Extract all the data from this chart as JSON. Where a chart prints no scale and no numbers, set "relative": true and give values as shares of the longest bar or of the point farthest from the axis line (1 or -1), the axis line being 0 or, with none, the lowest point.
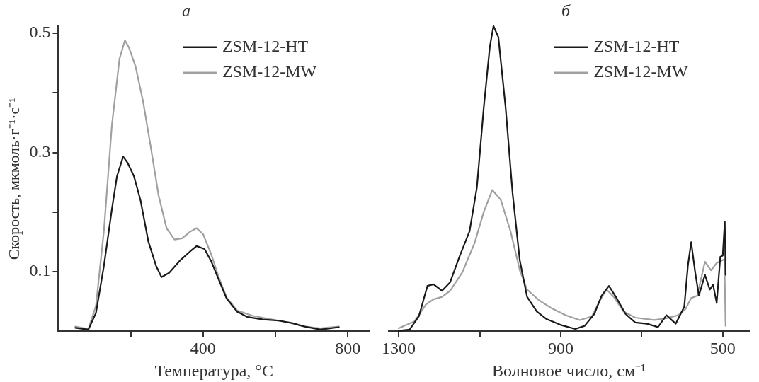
{
  "chart_data": [
    {
      "type": "line",
      "title": "а",
      "xlabel": "Температура, °C",
      "ylabel": "Скорость, мкмоль·г⁻¹·с⁻¹",
      "xlim": [
        0,
        860
      ],
      "ylim": [
        0,
        0.512
      ],
      "xticks": [
        {
          "value": 200,
          "label": null
        },
        400,
        {
          "value": 600,
          "label": null
        },
        800
      ],
      "yticks": [
        0.1,
        {
          "value": 0.2,
          "label": null
        },
        0.3,
        {
          "value": 0.4,
          "label": null
        },
        0.5
      ],
      "legend": "top right",
      "grid": false,
      "marker": "none",
      "line_style": "solid",
      "series": [
        {
          "name": "ZSM-12-HT",
          "color": "#1a1a1a",
          "x": [
            47,
            83,
            104,
            126,
            148,
            162,
            179,
            191,
            209,
            227,
            249,
            270,
            285,
            306,
            335,
            364,
            382,
            404,
            422,
            443,
            465,
            494,
            523,
            566,
            609,
            645,
            681,
            724,
            775
          ],
          "values": [
            0.006,
            0.003,
            0.031,
            0.11,
            0.205,
            0.26,
            0.293,
            0.283,
            0.26,
            0.22,
            0.15,
            0.11,
            0.091,
            0.098,
            0.118,
            0.134,
            0.143,
            0.138,
            0.118,
            0.087,
            0.055,
            0.033,
            0.024,
            0.02,
            0.018,
            0.014,
            0.008,
            0.003,
            0.007
          ]
        },
        {
          "name": "ZSM-12-MW",
          "color": "#a0a0a0",
          "x": [
            47,
            83,
            104,
            126,
            148,
            169,
            184,
            195,
            213,
            234,
            256,
            277,
            299,
            321,
            342,
            364,
            382,
            400,
            422,
            443,
            465,
            494,
            537,
            609,
            645,
            681,
            724,
            775
          ],
          "values": [
            0.008,
            0.004,
            0.043,
            0.169,
            0.346,
            0.457,
            0.488,
            0.476,
            0.445,
            0.386,
            0.307,
            0.228,
            0.173,
            0.154,
            0.156,
            0.167,
            0.173,
            0.163,
            0.13,
            0.091,
            0.057,
            0.035,
            0.026,
            0.018,
            0.014,
            0.008,
            0.005,
            0.008
          ]
        }
      ]
    },
    {
      "type": "line",
      "title": "б",
      "xlabel": "Волновое число, см⁻¹",
      "relative": true,
      "xlim": [
        1324,
        435
      ],
      "xticks": [
        1300,
        {
          "value": 1100,
          "label": null
        },
        900,
        {
          "value": 700,
          "label": null
        },
        500
      ],
      "legend": "top right",
      "grid": false,
      "marker": "none",
      "line_style": "solid",
      "series": [
        {
          "name": "ZSM-12-HT",
          "color": "#1a1a1a",
          "x": [
            1300,
            1273,
            1250,
            1229,
            1214,
            1193,
            1173,
            1149,
            1125,
            1107,
            1090,
            1075,
            1066,
            1054,
            1036,
            1019,
            1001,
            983,
            959,
            936,
            900,
            864,
            841,
            817,
            799,
            781,
            764,
            740,
            716,
            687,
            660,
            639,
            616,
            595,
            586,
            578,
            568,
            559,
            544,
            532,
            524,
            515,
            506,
            500,
            495,
            493
          ],
          "values": [
            0.002,
            0.006,
            0.05,
            0.149,
            0.154,
            0.133,
            0.161,
            0.248,
            0.328,
            0.471,
            0.733,
            0.932,
            1,
            0.964,
            0.733,
            0.455,
            0.232,
            0.113,
            0.065,
            0.041,
            0.021,
            0.008,
            0.018,
            0.057,
            0.117,
            0.149,
            0.113,
            0.057,
            0.029,
            0.025,
            0.014,
            0.053,
            0.025,
            0.081,
            0.216,
            0.292,
            0.193,
            0.117,
            0.185,
            0.137,
            0.153,
            0.093,
            0.244,
            0.248,
            0.36,
            0.185
          ]
        },
        {
          "name": "ZSM-12-MW",
          "color": "#a0a0a0",
          "x": [
            1300,
            1261,
            1232,
            1214,
            1193,
            1173,
            1143,
            1113,
            1090,
            1069,
            1048,
            1024,
            1001,
            983,
            953,
            924,
            888,
            853,
            823,
            805,
            787,
            769,
            745,
            716,
            669,
            639,
            610,
            592,
            578,
            563,
            544,
            529,
            515,
            496,
            493
          ],
          "values": [
            0.01,
            0.033,
            0.089,
            0.105,
            0.113,
            0.133,
            0.193,
            0.288,
            0.391,
            0.463,
            0.431,
            0.328,
            0.2,
            0.137,
            0.101,
            0.077,
            0.053,
            0.037,
            0.049,
            0.097,
            0.137,
            0.113,
            0.065,
            0.045,
            0.037,
            0.043,
            0.053,
            0.073,
            0.109,
            0.117,
            0.228,
            0.2,
            0.224,
            0.236,
            0.018
          ]
        }
      ]
    }
  ]
}
